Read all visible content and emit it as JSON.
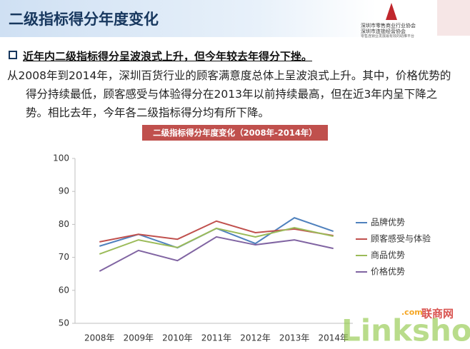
{
  "header": {
    "title": "二级指标得分年度变化",
    "logo_lines": [
      "深圳市零售商业行业协会",
      "深圳市连锁经营协会",
      "零售连锁业发展最有效的助推平台"
    ]
  },
  "body": {
    "bullet": "近年内二级指标得分呈波浪式上升，但今年较去年得分下挫。",
    "paragraph": "从2008年到2014年，深圳百货行业的顾客满意度总体上呈波浪式上升。其中，价格优势的得分持续最低，顾客感受与体验得分在2013年以前持续最高，但在近3年内呈下降之势。相比去年，今年各二级指标得分均有所下降。"
  },
  "watermark": {
    "brand": "Linkshop",
    "cn": "联商网",
    "domain": ".com"
  },
  "chart_data": {
    "type": "line",
    "title": "二级指标得分年度变化（2008年-2014年）",
    "categories": [
      "2008年",
      "2009年",
      "2010年",
      "2011年",
      "2012年",
      "2013年",
      "2014年"
    ],
    "series": [
      {
        "name": "品牌优势",
        "color": "#4f81bd",
        "values": [
          73.4,
          77.0,
          72.9,
          78.8,
          74.2,
          82.0,
          77.9
        ]
      },
      {
        "name": "顾客感受与体验",
        "color": "#c0504d",
        "values": [
          74.7,
          77.0,
          75.5,
          81.0,
          77.5,
          78.6,
          76.6
        ]
      },
      {
        "name": "商品优势",
        "color": "#9bbb59",
        "values": [
          71.0,
          75.3,
          73.0,
          78.8,
          76.2,
          79.0,
          76.4
        ]
      },
      {
        "name": "价格优势",
        "color": "#8064a2",
        "values": [
          65.8,
          72.1,
          69.0,
          76.2,
          73.8,
          75.3,
          72.7
        ]
      }
    ],
    "ylim": [
      50,
      100
    ],
    "yticks": [
      50,
      60,
      70,
      80,
      90,
      100
    ],
    "grid": false,
    "legend": "right"
  }
}
